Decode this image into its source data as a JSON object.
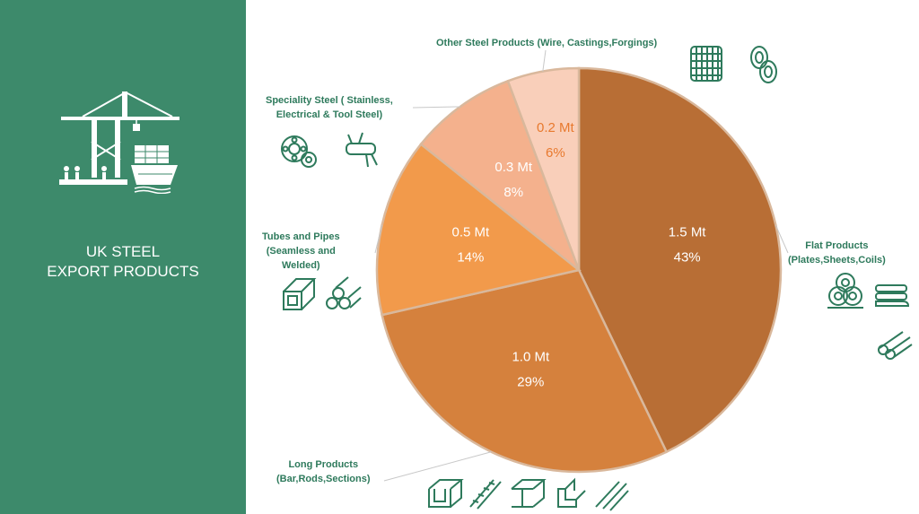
{
  "sidebar": {
    "title_line1": "UK STEEL",
    "title_line2": "EXPORT PRODUCTS",
    "icon": "port-crane-ship-icon"
  },
  "colors": {
    "sidebar_bg": "#3d8a6b",
    "label_text": "#2e7a5c",
    "icon_stroke": "#2e7a5c"
  },
  "chart_data": {
    "type": "pie",
    "title": "",
    "start_angle_deg": 0,
    "direction": "clockwise",
    "slices": [
      {
        "label_line1": "Flat Products",
        "label_line2": "(Plates,Sheets,Coils)",
        "label_line3": "",
        "value": 1.5,
        "value_text": "1.5 Mt",
        "percent_text": "43%",
        "color": "#b86e35",
        "text_color": "#ffffff"
      },
      {
        "label_line1": "Long Products",
        "label_line2": "(Bar,Rods,Sections)",
        "label_line3": "",
        "value": 1.0,
        "value_text": "1.0 Mt",
        "percent_text": "29%",
        "color": "#d5813d",
        "text_color": "#ffffff"
      },
      {
        "label_line1": "Tubes and Pipes",
        "label_line2": "(Seamless and",
        "label_line3": "Welded)",
        "value": 0.5,
        "value_text": "0.5 Mt",
        "percent_text": "14%",
        "color": "#f29a4b",
        "text_color": "#ffffff"
      },
      {
        "label_line1": "Speciality Steel ( Stainless,",
        "label_line2": "Electrical & Tool Steel)",
        "label_line3": "",
        "value": 0.3,
        "value_text": "0.3 Mt",
        "percent_text": "8%",
        "color": "#f4b18d",
        "text_color": "#ffffff"
      },
      {
        "label_line1": "Other Steel Products (Wire, Castings,Forgings)",
        "label_line2": "",
        "label_line3": "",
        "value": 0.2,
        "value_text": "0.2 Mt",
        "percent_text": "6%",
        "color": "#f9cfba",
        "text_color": "#e8792e"
      }
    ],
    "slice_icons": [
      [
        "coil-stack-icon",
        "sheet-roll-icon",
        "pipes-bundle-icon"
      ],
      [
        "channel-beam-icon",
        "rebar-icon",
        "i-beam-icon",
        "angle-bar-icon",
        "rods-icon"
      ],
      [
        "square-tube-icon",
        "round-pipes-icon"
      ],
      [
        "bearing-icon",
        "multitool-icon"
      ],
      [
        "wire-mesh-roll-icon",
        "chain-link-icon"
      ]
    ]
  }
}
